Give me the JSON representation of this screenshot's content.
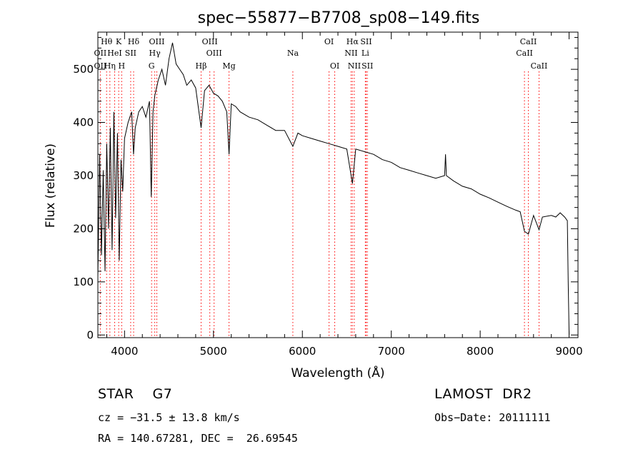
{
  "chart_data": {
    "type": "line",
    "title": "spec−55877−B7708_sp08−149.fits",
    "xlabel": "Wavelength (Å)",
    "ylabel": "Flux (relative)",
    "xlim": [
      3700,
      9100
    ],
    "ylim": [
      -5,
      570
    ],
    "xticks": [
      4000,
      5000,
      6000,
      7000,
      8000,
      9000
    ],
    "yticks": [
      0,
      100,
      200,
      300,
      400,
      500
    ],
    "grid": false,
    "legend": "none",
    "series": [
      {
        "color": "#000000",
        "x": [
          3700,
          3720,
          3740,
          3760,
          3780,
          3800,
          3820,
          3840,
          3860,
          3880,
          3900,
          3920,
          3940,
          3960,
          3980,
          4000,
          4040,
          4080,
          4101,
          4120,
          4160,
          4200,
          4240,
          4280,
          4300,
          4320,
          4340,
          4380,
          4420,
          4460,
          4500,
          4540,
          4580,
          4620,
          4660,
          4700,
          4750,
          4800,
          4861,
          4900,
          4950,
          5000,
          5050,
          5100,
          5150,
          5175,
          5200,
          5250,
          5300,
          5400,
          5500,
          5600,
          5700,
          5800,
          5893,
          5950,
          6000,
          6100,
          6200,
          6300,
          6400,
          6500,
          6563,
          6600,
          6700,
          6800,
          6900,
          7000,
          7100,
          7200,
          7300,
          7400,
          7500,
          7600,
          7610,
          7620,
          7700,
          7800,
          7900,
          8000,
          8100,
          8200,
          8300,
          8400,
          8450,
          8498,
          8542,
          8600,
          8662,
          8700,
          8800,
          8850,
          8900,
          8950,
          8980,
          8990,
          9000
        ],
        "y": [
          110,
          340,
          150,
          310,
          120,
          360,
          200,
          390,
          160,
          420,
          220,
          380,
          140,
          330,
          270,
          370,
          400,
          420,
          340,
          390,
          420,
          430,
          410,
          440,
          260,
          420,
          450,
          480,
          500,
          470,
          520,
          550,
          510,
          500,
          490,
          470,
          480,
          465,
          390,
          460,
          470,
          455,
          450,
          440,
          420,
          340,
          435,
          430,
          420,
          410,
          405,
          395,
          385,
          385,
          355,
          380,
          375,
          370,
          365,
          360,
          355,
          350,
          285,
          350,
          345,
          340,
          330,
          325,
          315,
          310,
          305,
          300,
          295,
          300,
          340,
          300,
          290,
          280,
          275,
          265,
          258,
          250,
          242,
          235,
          232,
          195,
          190,
          225,
          198,
          222,
          225,
          222,
          230,
          222,
          215,
          100,
          0
        ]
      }
    ],
    "annotations": [
      {
        "label": "Hθ",
        "x": 3798,
        "row": 1
      },
      {
        "label": "K",
        "x": 3934,
        "row": 1
      },
      {
        "label": "Hδ",
        "x": 4102,
        "row": 1
      },
      {
        "label": "OIII",
        "x": 4363,
        "row": 1
      },
      {
        "label": "OIII",
        "x": 4959,
        "row": 1
      },
      {
        "label": "OI",
        "x": 6300,
        "row": 1
      },
      {
        "label": "Hα",
        "x": 6563,
        "row": 1
      },
      {
        "label": "SII",
        "x": 6717,
        "row": 1
      },
      {
        "label": "CaII",
        "x": 8542,
        "row": 1
      },
      {
        "label": "OII",
        "x": 3727,
        "row": 2
      },
      {
        "label": "HeI",
        "x": 3889,
        "row": 2
      },
      {
        "label": "SII",
        "x": 4069,
        "row": 2
      },
      {
        "label": "Hγ",
        "x": 4340,
        "row": 2
      },
      {
        "label": "OIII",
        "x": 5007,
        "row": 2
      },
      {
        "label": "Na",
        "x": 5893,
        "row": 2
      },
      {
        "label": "NII",
        "x": 6548,
        "row": 2
      },
      {
        "label": "Li",
        "x": 6708,
        "row": 2
      },
      {
        "label": "CaII",
        "x": 8498,
        "row": 2
      },
      {
        "label": "OII",
        "x": 3727,
        "row": 3
      },
      {
        "label": "Hη",
        "x": 3835,
        "row": 3
      },
      {
        "label": "H",
        "x": 3968,
        "row": 3
      },
      {
        "label": "G",
        "x": 4304,
        "row": 3
      },
      {
        "label": "Hβ",
        "x": 4861,
        "row": 3
      },
      {
        "label": "Mg",
        "x": 5175,
        "row": 3
      },
      {
        "label": "OI",
        "x": 6364,
        "row": 3
      },
      {
        "label": "NII",
        "x": 6584,
        "row": 3
      },
      {
        "label": "SII",
        "x": 6731,
        "row": 3
      },
      {
        "label": "CaII",
        "x": 8662,
        "row": 3
      }
    ],
    "line_marker_color": "#ff0000"
  },
  "info": {
    "object": "STAR    G7",
    "survey": "LAMOST  DR2",
    "velocity": "cz = −31.5 ± 13.8 km/s",
    "obs_date": "Obs−Date: 20111111",
    "coords": "RA = 140.67281, DEC =  26.69545"
  }
}
